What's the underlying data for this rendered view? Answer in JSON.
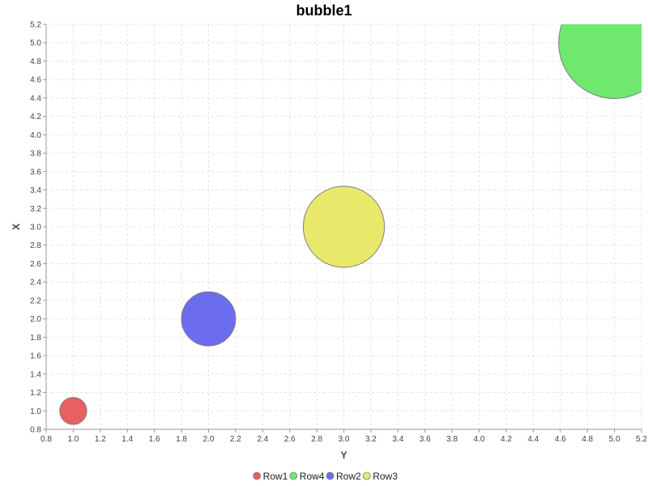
{
  "chart_data": {
    "type": "bubble",
    "title": "bubble1",
    "xlabel": "Y",
    "ylabel": "X",
    "xlim": [
      0.8,
      5.2
    ],
    "ylim": [
      0.8,
      5.2
    ],
    "tick_step": 0.2,
    "grid": true,
    "legend_position": "bottom",
    "series": [
      {
        "name": "Row1",
        "x": 1.0,
        "y": 1.0,
        "size": 1,
        "color": "#e86060"
      },
      {
        "name": "Row4",
        "x": 5.0,
        "y": 5.0,
        "size": 17,
        "color": "#6ee86e"
      },
      {
        "name": "Row2",
        "x": 2.0,
        "y": 2.0,
        "size": 4,
        "color": "#6c6cee"
      },
      {
        "name": "Row3",
        "x": 3.0,
        "y": 3.0,
        "size": 9,
        "color": "#e8e86a"
      }
    ]
  }
}
